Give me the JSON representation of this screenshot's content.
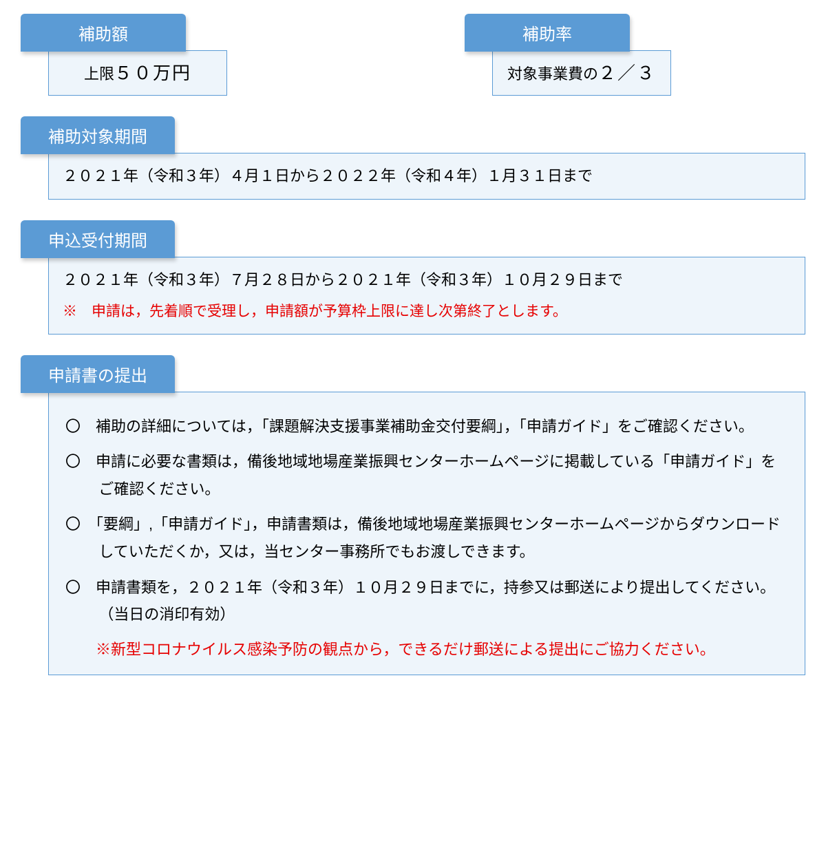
{
  "colors": {
    "tab_bg": "#5b9bd5",
    "tab_text": "#ffffff",
    "box_bg": "#eef5fb",
    "box_border": "#5b9bd5",
    "body_text": "#000000",
    "warning_text": "#e60000"
  },
  "subsidy_amount": {
    "label": "補助額",
    "value_prefix": "上限",
    "value_main": "５０万円"
  },
  "subsidy_rate": {
    "label": "補助率",
    "value_prefix": "対象事業費の",
    "value_main": "２／３"
  },
  "target_period": {
    "label": "補助対象期間",
    "text": "２０２１年（令和３年）４月１日から２０２２年（令和４年）１月３１日まで"
  },
  "application_period": {
    "label": "申込受付期間",
    "text": "２０２１年（令和３年）７月２８日から２０２１年（令和３年）１０月２９日まで",
    "note": "※　申請は，先着順で受理し，申請額が予算枠上限に達し次第終了とします。"
  },
  "submission": {
    "label": "申請書の提出",
    "items": [
      "〇　補助の詳細については，「課題解決支援事業補助金交付要綱」，「申請ガイド」をご確認ください。",
      "〇　申請に必要な書類は，備後地域地場産業振興センターホームページに掲載している「申請ガイド」をご確認ください。",
      "〇　「要綱」,「申請ガイド」，申請書類は，備後地域地場産業振興センターホームページからダウンロードしていただくか，又は，当センター事務所でもお渡しできます。",
      "〇　申請書類を，２０２１年（令和３年）１０月２９日までに，持参又は郵送により提出してください。（当日の消印有効）"
    ],
    "covid_note": "※新型コロナウイルス感染予防の観点から，できるだけ郵送による提出にご協力ください。"
  }
}
